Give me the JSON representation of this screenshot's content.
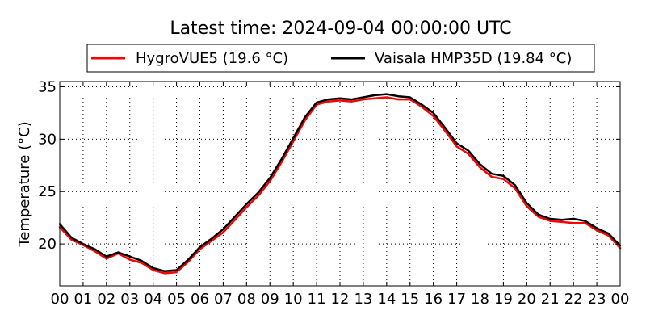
{
  "chart_data": {
    "type": "line",
    "title": "Latest time: 2024-09-04 00:00:00 UTC",
    "xlabel": "",
    "ylabel": "Temperature (°C)",
    "x_ticks": [
      "00",
      "01",
      "02",
      "03",
      "04",
      "05",
      "06",
      "07",
      "08",
      "09",
      "10",
      "11",
      "12",
      "13",
      "14",
      "15",
      "16",
      "17",
      "18",
      "19",
      "20",
      "21",
      "22",
      "23",
      "00"
    ],
    "y_ticks": [
      "20",
      "25",
      "30",
      "35"
    ],
    "xlim": [
      0,
      24
    ],
    "ylim": [
      16,
      35.5
    ],
    "grid": true,
    "legend_position": "top-center",
    "x_hours": [
      0,
      0.5,
      1,
      1.5,
      2,
      2.5,
      3,
      3.5,
      4,
      4.5,
      5,
      5.5,
      6,
      6.5,
      7,
      7.5,
      8,
      8.5,
      9,
      9.5,
      10,
      10.5,
      11,
      11.5,
      12,
      12.5,
      13,
      13.5,
      14,
      14.5,
      15,
      15.5,
      16,
      16.5,
      17,
      17.5,
      18,
      18.5,
      19,
      19.5,
      20,
      20.5,
      21,
      21.5,
      22,
      22.5,
      23,
      23.5,
      24
    ],
    "series": [
      {
        "name": "HygroVUE5 (19.6 °C)",
        "color": "#ff0000",
        "values": [
          21.6,
          20.4,
          19.9,
          19.3,
          18.6,
          19.1,
          18.5,
          18.2,
          17.5,
          17.2,
          17.3,
          18.3,
          19.5,
          20.3,
          21.1,
          22.3,
          23.5,
          24.6,
          26.0,
          27.8,
          29.8,
          31.8,
          33.3,
          33.6,
          33.7,
          33.6,
          33.8,
          33.9,
          34.0,
          33.8,
          33.8,
          33.1,
          32.2,
          30.8,
          29.3,
          28.6,
          27.3,
          26.4,
          26.2,
          25.3,
          23.6,
          22.6,
          22.2,
          22.1,
          22.0,
          22.0,
          21.3,
          20.8,
          19.6
        ]
      },
      {
        "name": "Vaisala HMP35D (19.84 °C)",
        "color": "#000000",
        "values": [
          21.9,
          20.6,
          20.0,
          19.5,
          18.8,
          19.2,
          18.8,
          18.4,
          17.7,
          17.4,
          17.5,
          18.5,
          19.7,
          20.5,
          21.4,
          22.6,
          23.8,
          24.9,
          26.3,
          28.1,
          30.1,
          32.1,
          33.5,
          33.8,
          33.9,
          33.8,
          34.0,
          34.2,
          34.3,
          34.1,
          34.0,
          33.3,
          32.5,
          31.1,
          29.6,
          28.9,
          27.6,
          26.7,
          26.5,
          25.6,
          23.9,
          22.8,
          22.4,
          22.3,
          22.4,
          22.2,
          21.5,
          21.0,
          19.84
        ]
      }
    ]
  }
}
